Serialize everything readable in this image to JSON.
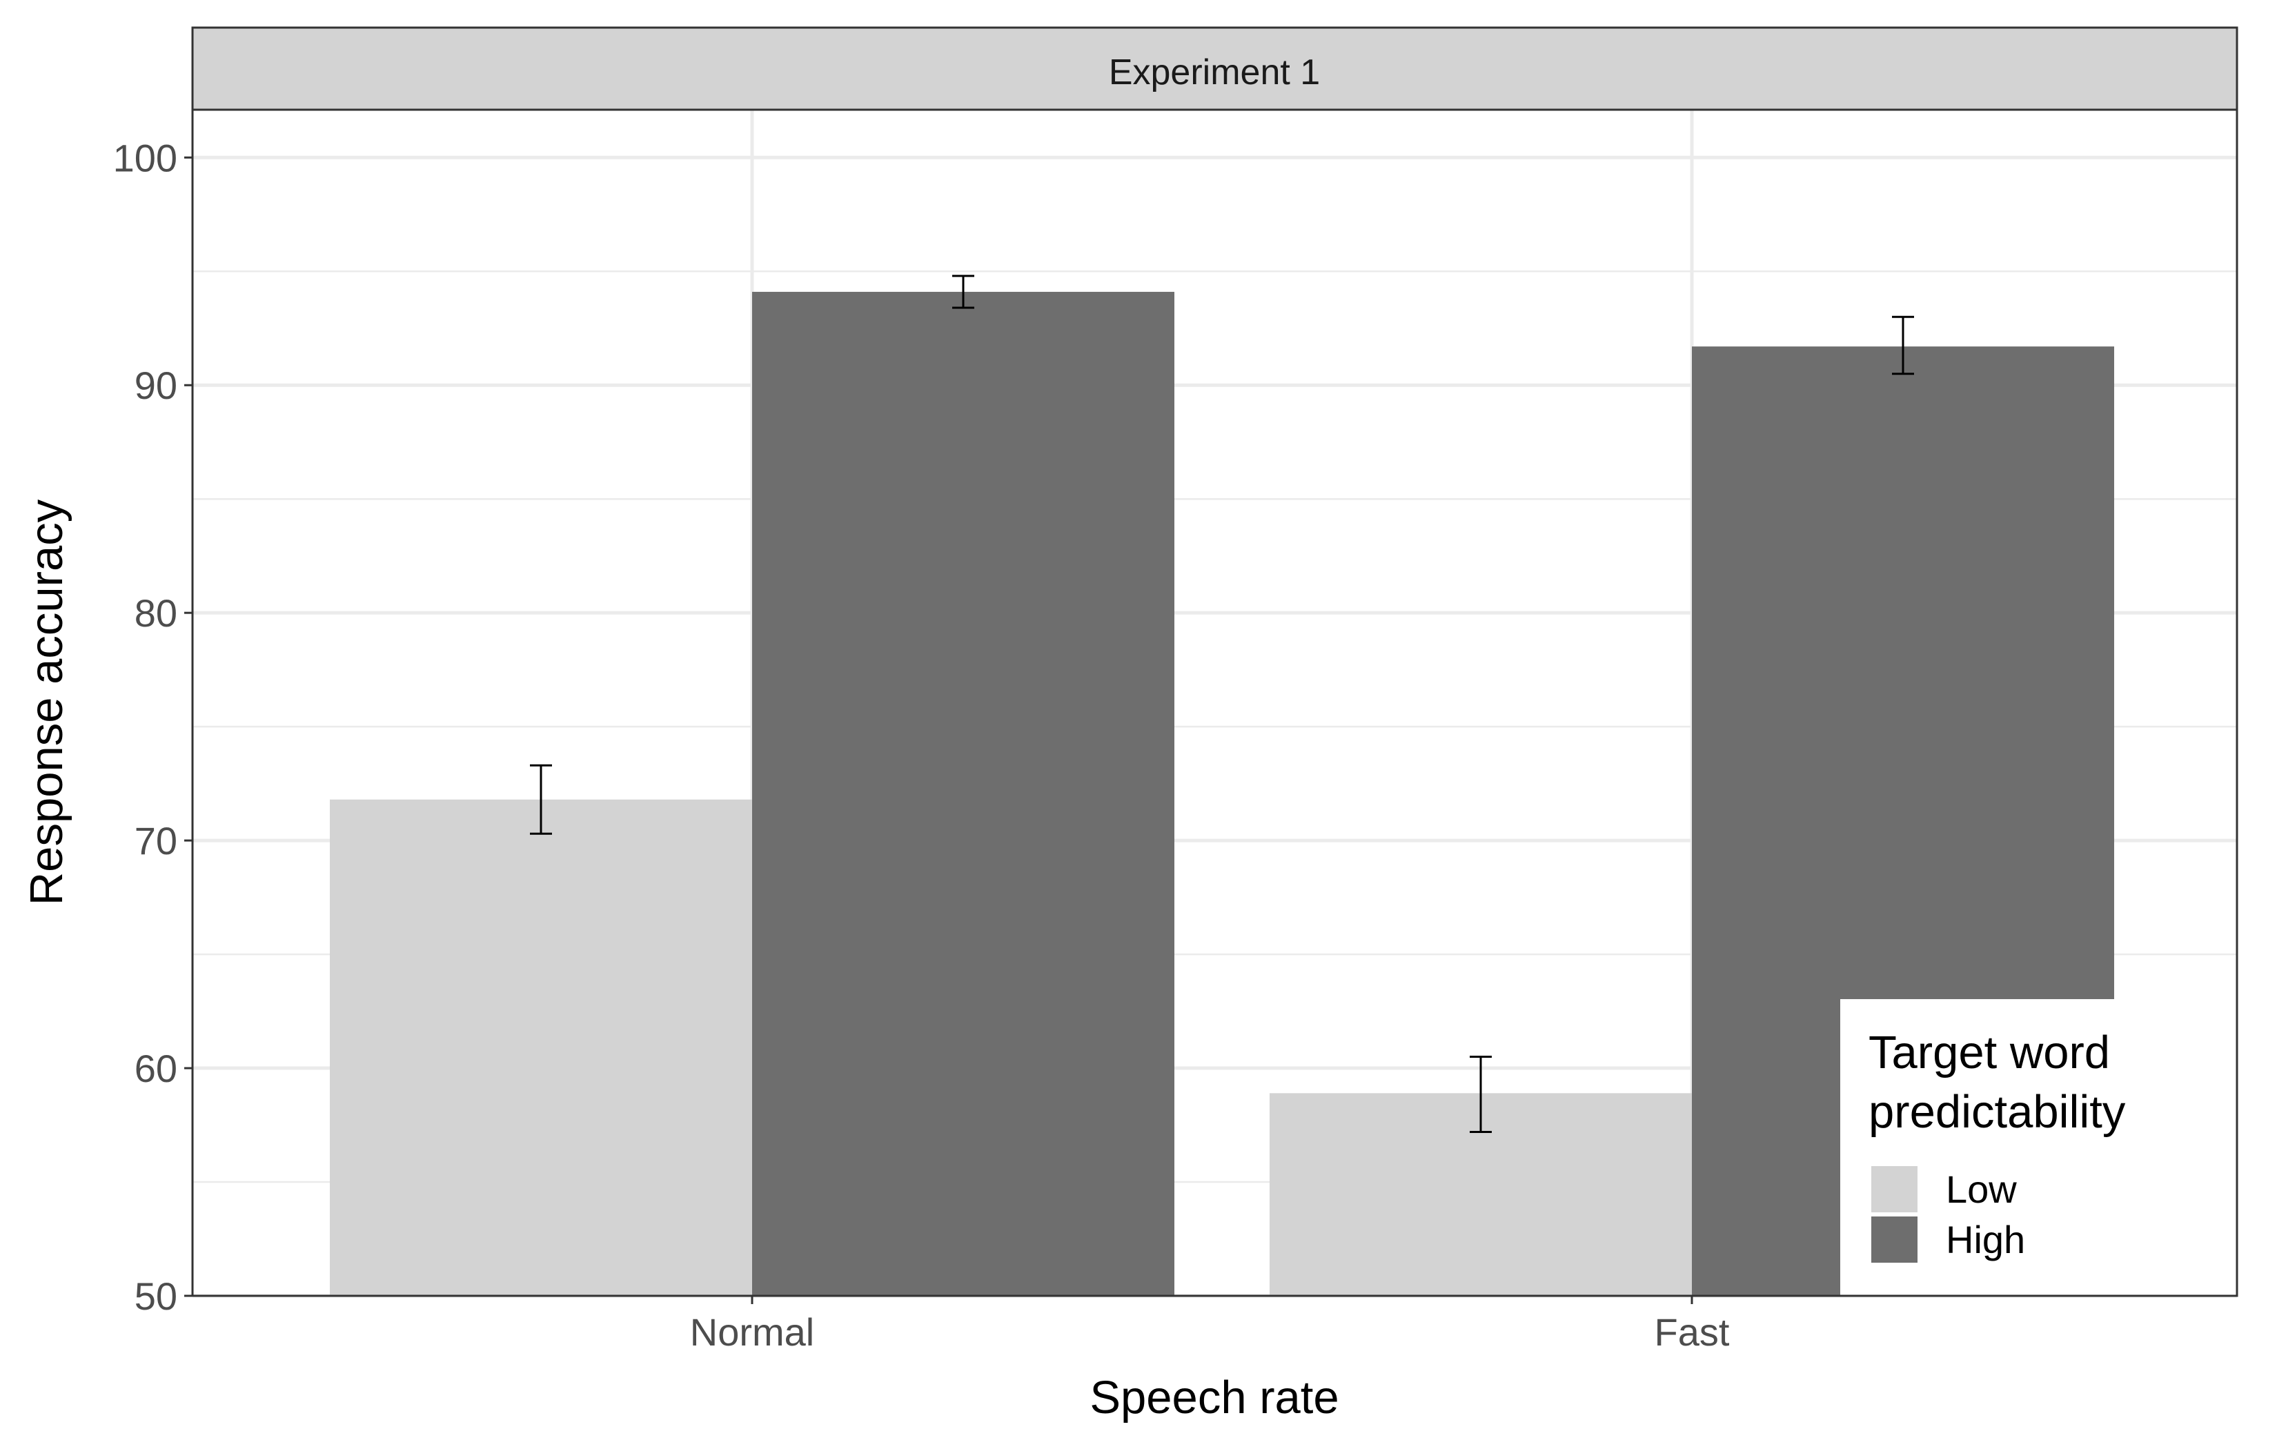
{
  "chart_data": {
    "type": "bar",
    "panel_title": "Experiment 1",
    "xlabel": "Speech rate",
    "ylabel": "Response accuracy",
    "categories": [
      "Normal",
      "Fast"
    ],
    "ylim": [
      50,
      100
    ],
    "yticks": [
      50,
      60,
      70,
      80,
      90,
      100
    ],
    "grid": true,
    "legend": {
      "title_lines": [
        "Target word",
        "predictability"
      ],
      "position": "bottom-right",
      "entries": [
        "Low",
        "High"
      ]
    },
    "series": [
      {
        "name": "Low",
        "color": "#d3d3d3",
        "values": [
          71.8,
          58.9
        ],
        "error_low": [
          70.3,
          57.2
        ],
        "error_high": [
          73.3,
          60.5
        ]
      },
      {
        "name": "High",
        "color": "#6e6e6e",
        "values": [
          94.1,
          91.7
        ],
        "error_low": [
          93.4,
          90.5
        ],
        "error_high": [
          94.8,
          93.0
        ]
      }
    ]
  }
}
